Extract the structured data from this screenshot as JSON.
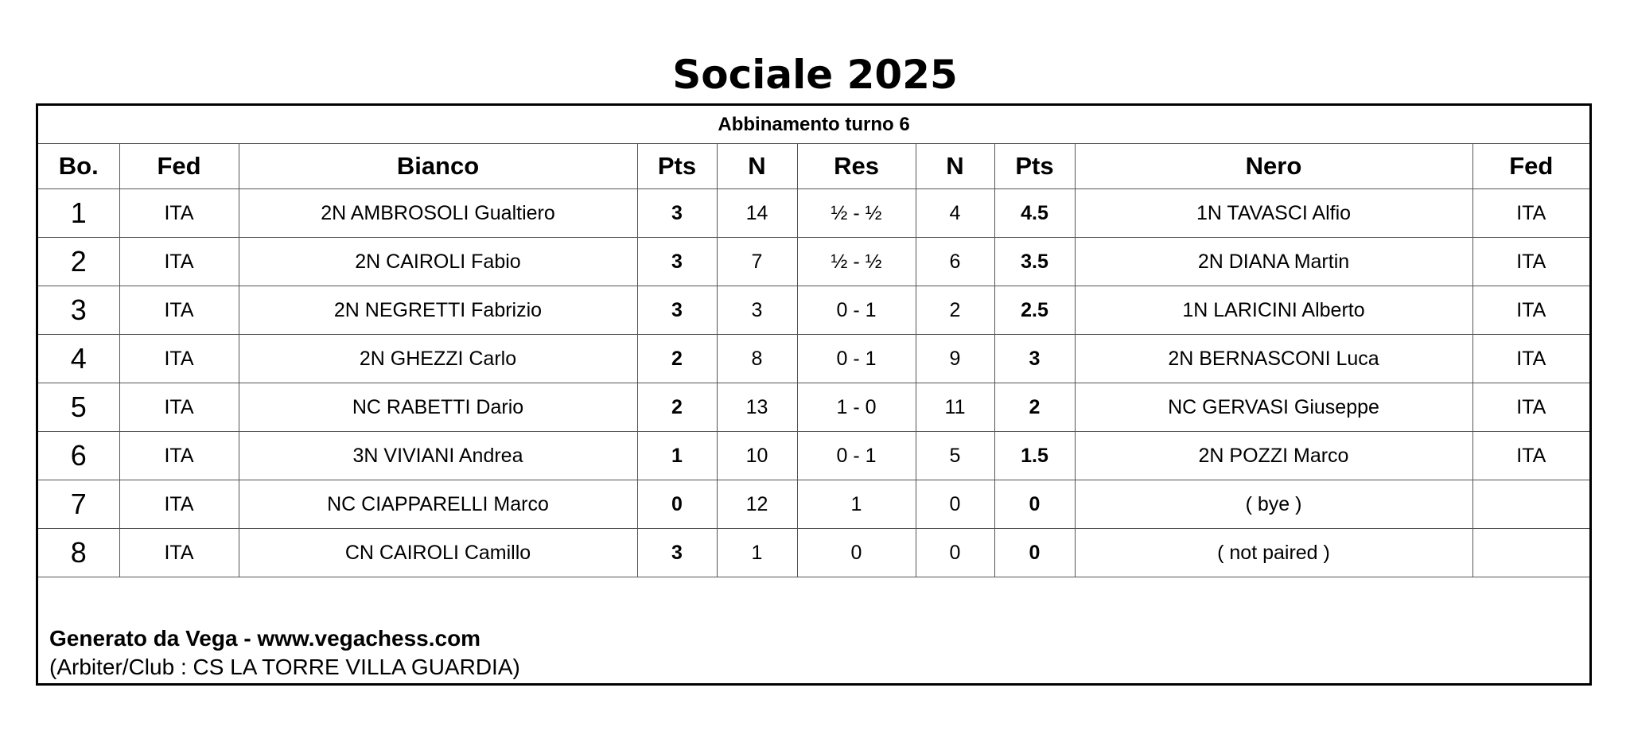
{
  "title": "Sociale 2025",
  "subtitle": "Abbinamento turno 6",
  "headers": [
    "Bo.",
    "Fed",
    "Bianco",
    "Pts",
    "N",
    "Res",
    "N",
    "Pts",
    "Nero",
    "Fed"
  ],
  "rows": [
    {
      "bo": "1",
      "fed_w": "ITA",
      "white": "2N AMBROSOLI Gualtiero",
      "pts_w": "3",
      "n_w": "14",
      "res": "½ - ½",
      "n_b": "4",
      "pts_b": "4.5",
      "black": "1N TAVASCI Alfio",
      "fed_b": "ITA"
    },
    {
      "bo": "2",
      "fed_w": "ITA",
      "white": "2N CAIROLI Fabio",
      "pts_w": "3",
      "n_w": "7",
      "res": "½ - ½",
      "n_b": "6",
      "pts_b": "3.5",
      "black": "2N DIANA Martin",
      "fed_b": "ITA"
    },
    {
      "bo": "3",
      "fed_w": "ITA",
      "white": "2N NEGRETTI Fabrizio",
      "pts_w": "3",
      "n_w": "3",
      "res": "0 - 1",
      "n_b": "2",
      "pts_b": "2.5",
      "black": "1N LARICINI Alberto",
      "fed_b": "ITA"
    },
    {
      "bo": "4",
      "fed_w": "ITA",
      "white": "2N GHEZZI Carlo",
      "pts_w": "2",
      "n_w": "8",
      "res": "0 - 1",
      "n_b": "9",
      "pts_b": "3",
      "black": "2N BERNASCONI Luca",
      "fed_b": "ITA"
    },
    {
      "bo": "5",
      "fed_w": "ITA",
      "white": "NC RABETTI Dario",
      "pts_w": "2",
      "n_w": "13",
      "res": "1 - 0",
      "n_b": "11",
      "pts_b": "2",
      "black": "NC GERVASI Giuseppe",
      "fed_b": "ITA"
    },
    {
      "bo": "6",
      "fed_w": "ITA",
      "white": "3N VIVIANI Andrea",
      "pts_w": "1",
      "n_w": "10",
      "res": "0 - 1",
      "n_b": "5",
      "pts_b": "1.5",
      "black": "2N POZZI Marco",
      "fed_b": "ITA"
    },
    {
      "bo": "7",
      "fed_w": "ITA",
      "white": "NC CIAPPARELLI Marco",
      "pts_w": "0",
      "n_w": "12",
      "res": "1",
      "n_b": "0",
      "pts_b": "0",
      "black": "( bye )",
      "fed_b": ""
    },
    {
      "bo": "8",
      "fed_w": "ITA",
      "white": "CN CAIROLI Camillo",
      "pts_w": "3",
      "n_w": "1",
      "res": "0",
      "n_b": "0",
      "pts_b": "0",
      "black": "( not paired )",
      "fed_b": ""
    }
  ],
  "footer": {
    "generated": "Generato da Vega - www.vegachess.com",
    "arbiter": "(Arbiter/Club : CS LA TORRE VILLA GUARDIA)"
  }
}
